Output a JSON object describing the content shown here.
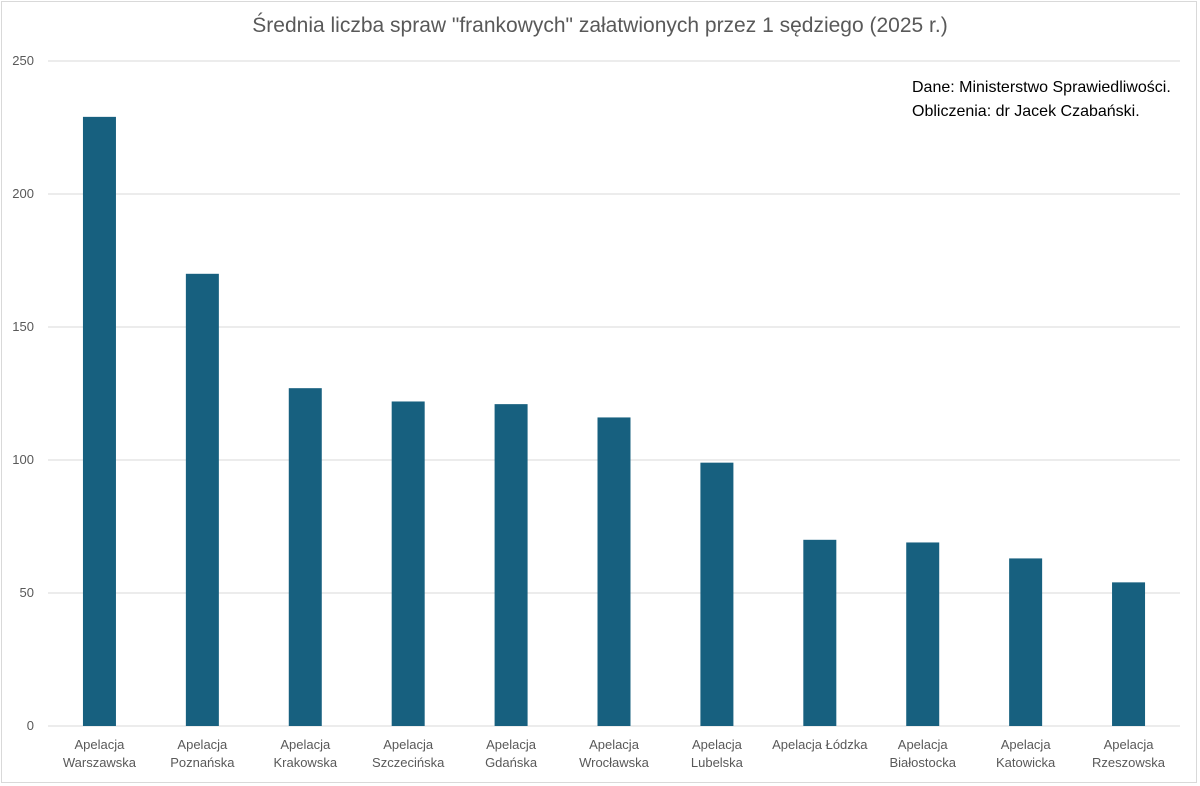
{
  "chart_data": {
    "type": "bar",
    "title": "Średnia liczba spraw \"frankowych\" załatwionych  przez 1 sędziego (2025 r.)",
    "xlabel": "",
    "ylabel": "",
    "ylim": [
      0,
      250
    ],
    "yticks": [
      0,
      50,
      100,
      150,
      200,
      250
    ],
    "grid": true,
    "legend": "none",
    "bar_color": "#17607f",
    "categories": [
      [
        "Apelacja",
        "Warszawska"
      ],
      [
        "Apelacja",
        "Poznańska"
      ],
      [
        "Apelacja",
        "Krakowska"
      ],
      [
        "Apelacja",
        "Szczecińska"
      ],
      [
        "Apelacja",
        "Gdańska"
      ],
      [
        "Apelacja",
        "Wrocławska"
      ],
      [
        "Apelacja",
        "Lubelska"
      ],
      [
        "Apelacja Łódzka"
      ],
      [
        "Apelacja",
        "Białostocka"
      ],
      [
        "Apelacja",
        "Katowicka"
      ],
      [
        "Apelacja",
        "Rzeszowska"
      ]
    ],
    "values": [
      229,
      170,
      127,
      122,
      121,
      116,
      99,
      70,
      69,
      63,
      54
    ],
    "annotations": [
      "Dane: Ministerstwo Sprawiedliwości.",
      "Obliczenia: dr Jacek Czabański."
    ]
  }
}
